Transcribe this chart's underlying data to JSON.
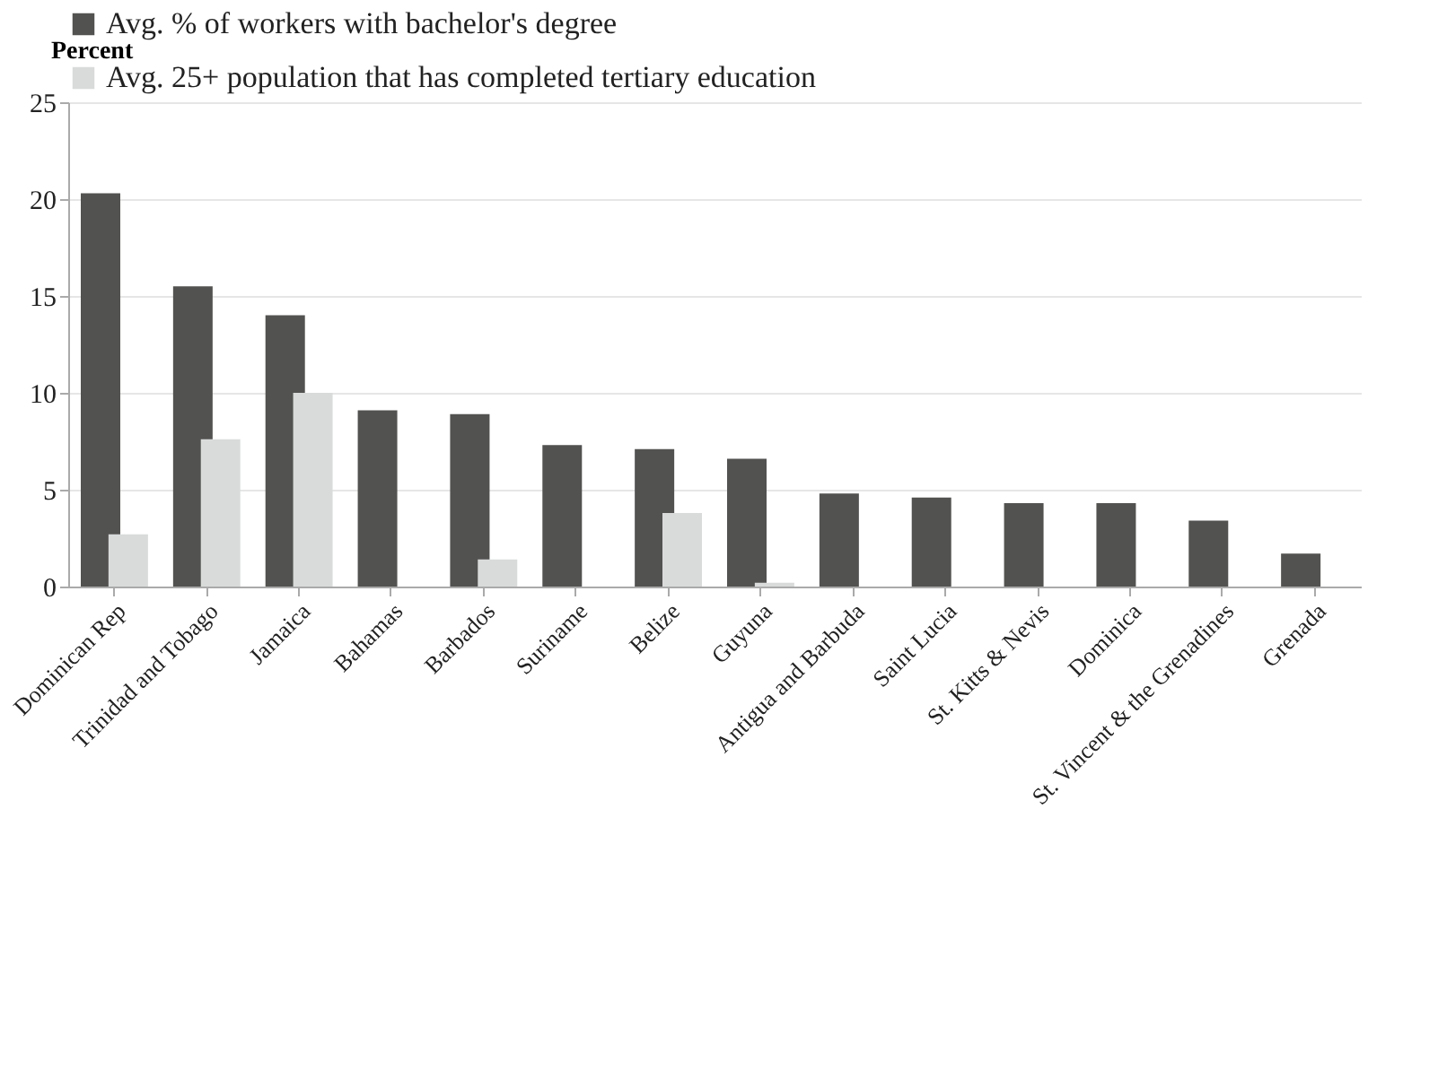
{
  "chart_data": {
    "type": "bar",
    "ylabel": "Percent",
    "categories": [
      "Dominican Rep",
      "Trinidad and Tobago",
      "Jamaica",
      "Bahamas",
      "Barbados",
      "Suriname",
      "Belize",
      "Guyuna",
      "Antigua and Barbuda",
      "Saint Lucia",
      "St. Kitts & Nevis",
      "Dominica",
      "St. Vincent & the Grenadines",
      "Grenada"
    ],
    "series": [
      {
        "name": "Avg. % of workers with bachelor's degree",
        "color": "#525250",
        "values": [
          20.3,
          15.5,
          14.0,
          9.1,
          8.9,
          7.3,
          7.1,
          6.6,
          4.8,
          4.6,
          4.3,
          4.3,
          3.4,
          1.7
        ]
      },
      {
        "name": "Avg. 25+ population that has completed tertiary education",
        "color": "#d9dbdb",
        "values": [
          2.7,
          7.6,
          10.0,
          null,
          1.4,
          null,
          3.8,
          0.2,
          null,
          null,
          null,
          null,
          null,
          null
        ]
      }
    ],
    "ylim": [
      0,
      25
    ],
    "yticks": [
      0,
      5,
      10,
      15,
      20,
      25
    ],
    "grid": "y",
    "legend": "top"
  }
}
